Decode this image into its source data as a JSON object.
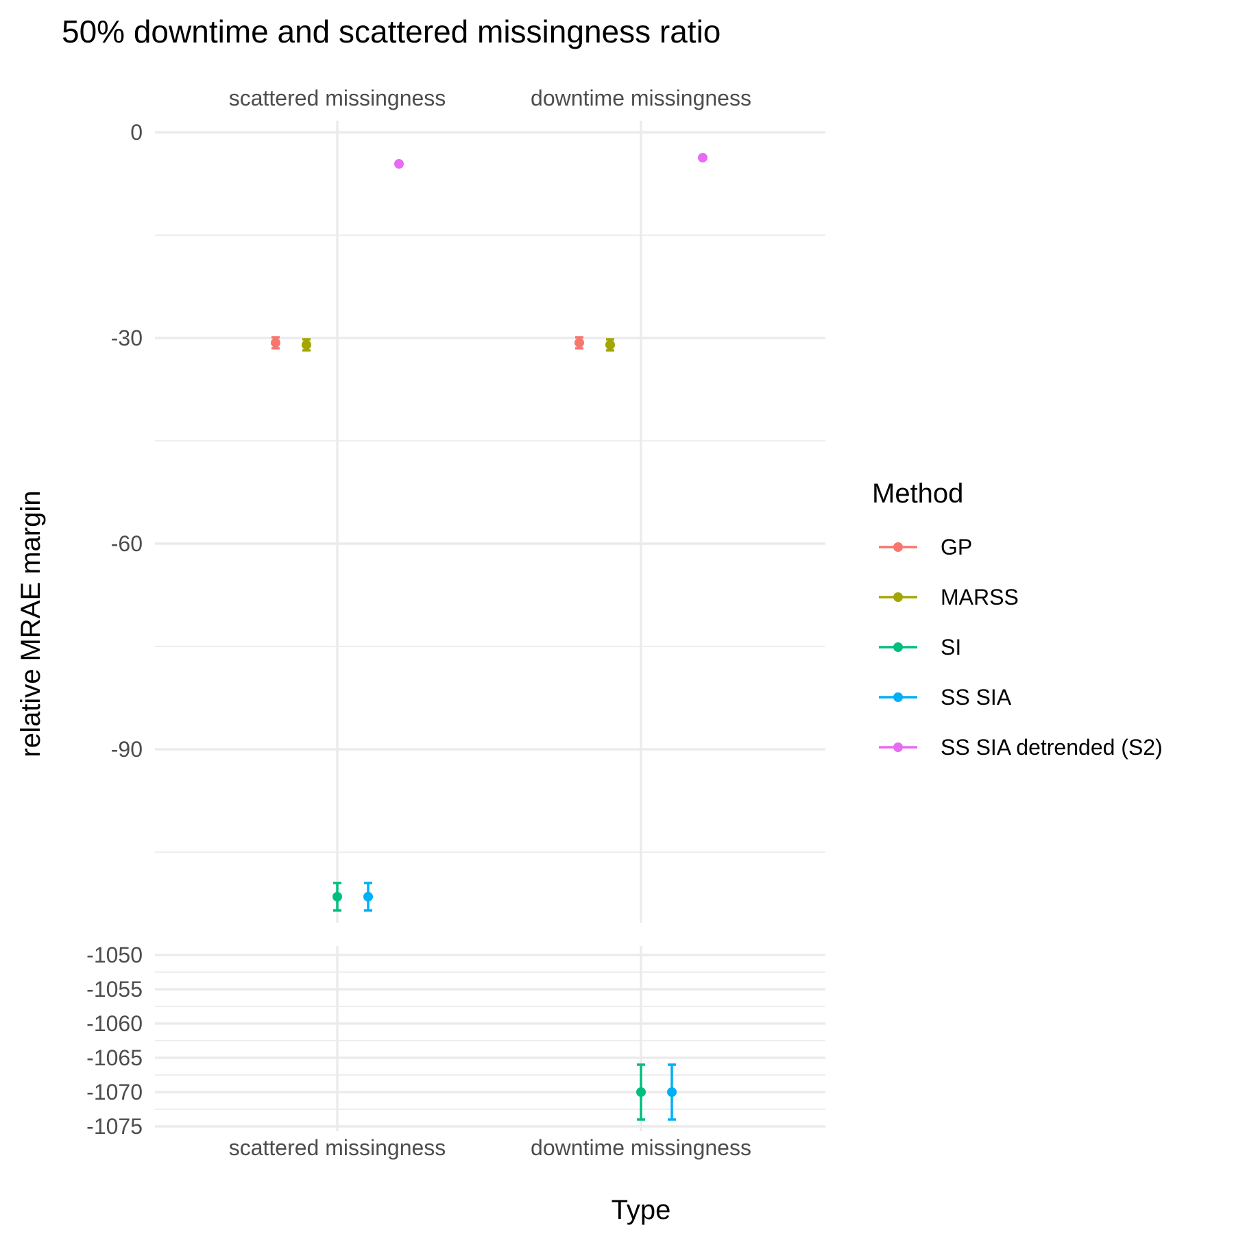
{
  "chart_data": {
    "type": "scatter",
    "title": "50% downtime and scattered missingness ratio",
    "xlabel": "Type",
    "ylabel": "relative MRAE margin",
    "categories": [
      "scattered missingness",
      "downtime missingness"
    ],
    "legend": {
      "title": "Method",
      "position": "right"
    },
    "grid": true,
    "upper_panel": {
      "ylim": [
        -112,
        1.5
      ],
      "yticks": [
        0,
        -30,
        -60,
        -90
      ],
      "ytick_labels": [
        "0",
        "-30",
        "-60",
        "-90"
      ]
    },
    "lower_panel": {
      "ylim": [
        -1076,
        -1049
      ],
      "yticks": [
        -1050,
        -1055,
        -1060,
        -1065,
        -1070,
        -1075
      ],
      "ytick_labels": [
        "-1050",
        "-1055",
        "-1060",
        "-1065",
        "-1070",
        "-1075"
      ]
    },
    "series": [
      {
        "name": "GP",
        "color": "#F8766D",
        "points": [
          {
            "category": "scattered missingness",
            "y": -30.7,
            "lo": -31.5,
            "hi": -29.9
          },
          {
            "category": "downtime missingness",
            "y": -30.7,
            "lo": -31.5,
            "hi": -29.9
          }
        ]
      },
      {
        "name": "MARSS",
        "color": "#A3A500",
        "points": [
          {
            "category": "scattered missingness",
            "y": -31.0,
            "lo": -31.8,
            "hi": -30.2
          },
          {
            "category": "downtime missingness",
            "y": -31.0,
            "lo": -31.8,
            "hi": -30.2
          }
        ]
      },
      {
        "name": "SI",
        "color": "#00BF7D",
        "points": [
          {
            "category": "scattered missingness",
            "y": -111.5,
            "lo": -113.5,
            "hi": -109.5
          },
          {
            "category": "downtime missingness",
            "y": -1070.0,
            "lo": -1074.0,
            "hi": -1066.0
          }
        ]
      },
      {
        "name": "SS SIA",
        "color": "#00B0F6",
        "points": [
          {
            "category": "scattered missingness",
            "y": -111.5,
            "lo": -113.5,
            "hi": -109.5
          },
          {
            "category": "downtime missingness",
            "y": -1070.0,
            "lo": -1074.0,
            "hi": -1066.0
          }
        ]
      },
      {
        "name": "SS SIA detrended (S2)",
        "color": "#E76BF3",
        "points": [
          {
            "category": "scattered missingness",
            "y": -4.6,
            "lo": -4.6,
            "hi": -4.6
          },
          {
            "category": "downtime missingness",
            "y": -3.7,
            "lo": -3.7,
            "hi": -3.7
          }
        ]
      }
    ]
  }
}
